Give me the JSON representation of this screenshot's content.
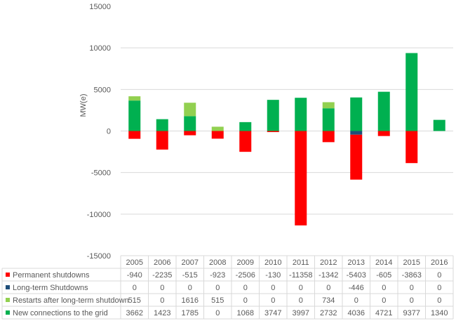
{
  "chart_data": {
    "type": "bar",
    "stacked": true,
    "ylabel": "MW(e)",
    "ylim": [
      -15000,
      15000
    ],
    "yticks": [
      15000,
      10000,
      5000,
      0,
      -5000,
      -10000,
      -15000
    ],
    "grid": true,
    "legend": "data-table",
    "categories": [
      "2005",
      "2006",
      "2007",
      "2008",
      "2009",
      "2010",
      "2011",
      "2012",
      "2013",
      "2014",
      "2015",
      "2016"
    ],
    "series": [
      {
        "name": "Permanent shutdowns",
        "color": "#ff0000",
        "values": [
          -940,
          -2235,
          -515,
          -923,
          -2506,
          -130,
          -11358,
          -1342,
          -5403,
          -605,
          -3863,
          0
        ]
      },
      {
        "name": "Long-term Shutdowns",
        "color": "#1f4e79",
        "values": [
          0,
          0,
          0,
          0,
          0,
          0,
          0,
          0,
          -446,
          0,
          0,
          0
        ]
      },
      {
        "name": "Restarts after long-term shutdown",
        "color": "#92d050",
        "values": [
          515,
          0,
          1616,
          515,
          0,
          0,
          0,
          734,
          0,
          0,
          0,
          0
        ]
      },
      {
        "name": "New connections to the grid",
        "color": "#00b050",
        "values": [
          3662,
          1423,
          1785,
          0,
          1068,
          3747,
          3997,
          2732,
          4036,
          4721,
          9377,
          1340
        ]
      }
    ]
  }
}
